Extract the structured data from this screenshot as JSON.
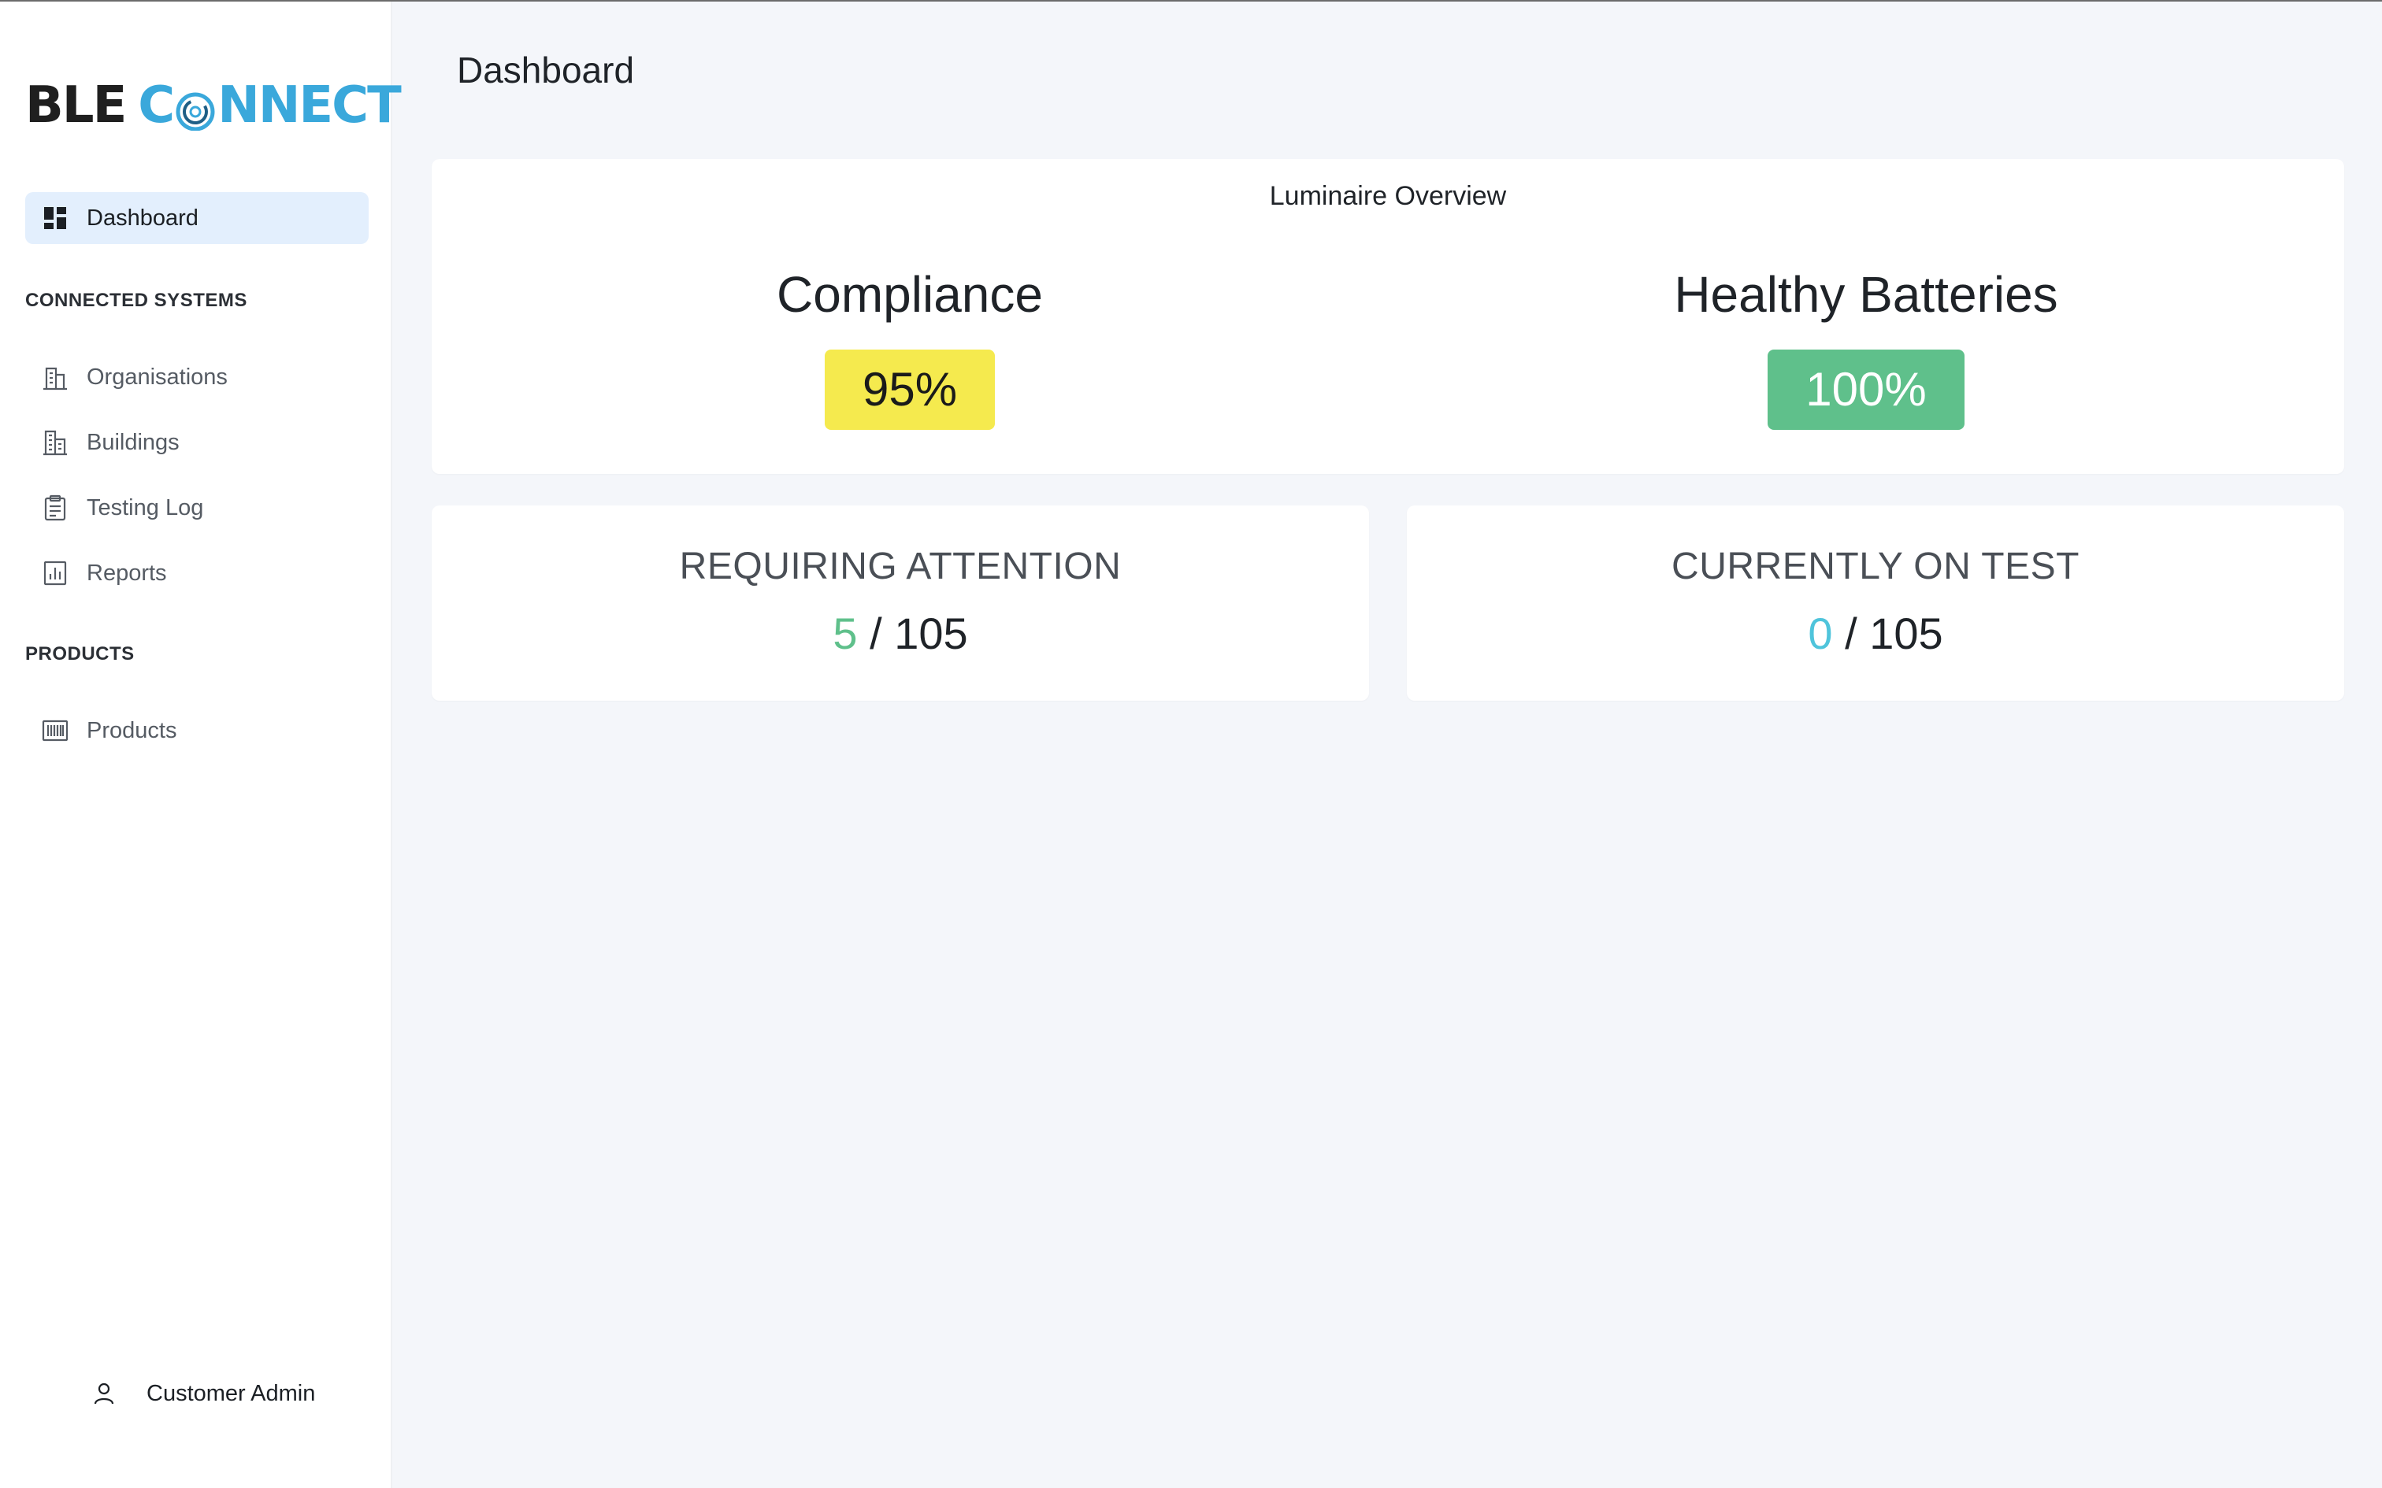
{
  "app": {
    "logo_left": "BLE",
    "logo_right_1": "C",
    "logo_right_2": "NNECT"
  },
  "sidebar": {
    "dashboard": {
      "label": "Dashboard",
      "icon": "dashboard-grid-icon"
    },
    "section_connected": "CONNECTED SYSTEMS",
    "items": [
      {
        "label": "Organisations",
        "icon": "building-office-icon"
      },
      {
        "label": "Buildings",
        "icon": "buildings-icon"
      },
      {
        "label": "Testing Log",
        "icon": "clipboard-icon"
      },
      {
        "label": "Reports",
        "icon": "report-chart-icon"
      }
    ],
    "section_products": "PRODUCTS",
    "products": {
      "label": "Products",
      "icon": "barcode-icon"
    },
    "user": {
      "label": "Customer Admin",
      "icon": "user-icon"
    }
  },
  "page": {
    "title": "Dashboard"
  },
  "overview": {
    "title": "Luminaire Overview",
    "compliance": {
      "label": "Compliance",
      "value": "95%",
      "color": "#f5ea4e"
    },
    "batteries": {
      "label": "Healthy Batteries",
      "value": "100%",
      "color": "#5fc08b"
    }
  },
  "attention": {
    "label": "REQUIRING ATTENTION",
    "count": "5",
    "separator": " / ",
    "total": "105",
    "color": "#5fc08b"
  },
  "on_test": {
    "label": "CURRENTLY ON TEST",
    "count": "0",
    "separator": " / ",
    "total": "105",
    "color": "#4fc4db"
  }
}
